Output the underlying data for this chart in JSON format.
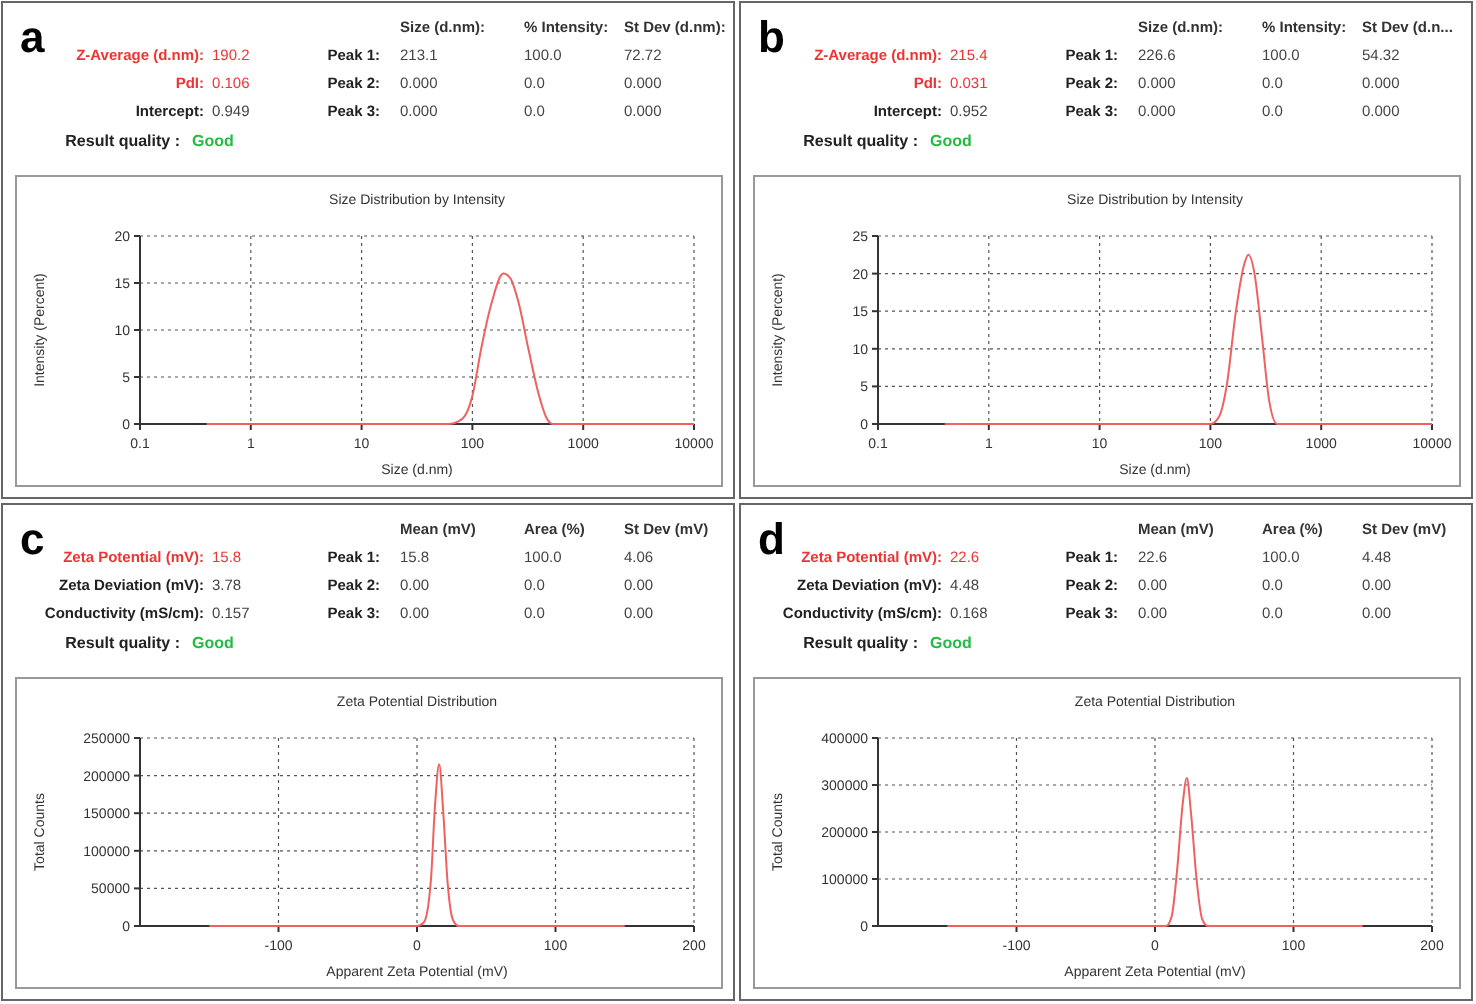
{
  "chart_data": [
    {
      "type": "other",
      "title": "a",
      "annotations": [
        "Size (d.nm):",
        "% Intensity:",
        "St Dev (d.nm):",
        "Z-Average (d.nm):",
        "190.2",
        "Peak 1:",
        "213.1",
        "100.0",
        "72.72",
        "PdI:",
        "0.106",
        "Peak 2:",
        "0.000",
        "0.0",
        "0.000",
        "Intercept:",
        "0.949",
        "Peak 3:",
        "0.000",
        "0.0",
        "0.000",
        "Result quality :",
        "Good"
      ]
    },
    {
      "type": "line",
      "title": "Size Distribution by Intensity",
      "xlabel": "Size (d.nm)",
      "ylabel": "Intensity (Percent)",
      "log": "x",
      "grid": true,
      "xlim": [
        0.1,
        10000
      ],
      "xticks": [
        0.1,
        1,
        10,
        100,
        1000,
        10000
      ],
      "ylim": [
        0,
        20
      ],
      "yticks": [
        0,
        5,
        10,
        15,
        20
      ],
      "x": [
        0.4,
        60,
        80,
        100,
        120,
        150,
        190,
        220,
        260,
        320,
        400,
        460,
        530,
        10000
      ],
      "series": [
        {
          "color": "#f06060",
          "values": [
            0,
            0,
            0.5,
            3,
            8,
            13,
            16,
            15.5,
            13,
            8,
            3,
            0.8,
            0,
            0
          ]
        }
      ]
    },
    {
      "type": "other",
      "title": "b",
      "annotations": [
        "Size (d.nm):",
        "% Intensity:",
        "St Dev (d.n...",
        "Z-Average (d.nm):",
        "215.4",
        "Peak 1:",
        "226.6",
        "100.0",
        "54.32",
        "PdI:",
        "0.031",
        "Peak 2:",
        "0.000",
        "0.0",
        "0.000",
        "Intercept:",
        "0.952",
        "Peak 3:",
        "0.000",
        "0.0",
        "0.000",
        "Result quality :",
        "Good"
      ]
    },
    {
      "type": "line",
      "title": "Size Distribution by Intensity",
      "xlabel": "Size (d.nm)",
      "ylabel": "Intensity (Percent)",
      "log": "x",
      "grid": true,
      "xlim": [
        0.1,
        10000
      ],
      "xticks": [
        0.1,
        1,
        10,
        100,
        1000,
        10000
      ],
      "ylim": [
        0,
        25
      ],
      "yticks": [
        0,
        5,
        10,
        15,
        20,
        25
      ],
      "x": [
        0.4,
        100,
        120,
        140,
        170,
        200,
        220,
        250,
        290,
        340,
        400,
        10000
      ],
      "series": [
        {
          "color": "#f06060",
          "values": [
            0,
            0,
            1,
            5,
            15,
            21,
            22.5,
            20,
            12,
            3,
            0,
            0
          ]
        }
      ]
    },
    {
      "type": "other",
      "title": "c",
      "annotations": [
        "Mean (mV)",
        "Area (%)",
        "St Dev (mV)",
        "Zeta Potential (mV):",
        "15.8",
        "Peak 1:",
        "15.8",
        "100.0",
        "4.06",
        "Zeta Deviation (mV):",
        "3.78",
        "Peak 2:",
        "0.00",
        "0.0",
        "0.00",
        "Conductivity (mS/cm):",
        "0.157",
        "Peak 3:",
        "0.00",
        "0.0",
        "0.00",
        "Result quality :",
        "Good"
      ]
    },
    {
      "type": "line",
      "title": "Zeta Potential Distribution",
      "xlabel": "Apparent Zeta Potential (mV)",
      "ylabel": "Total Counts",
      "grid": true,
      "xlim": [
        -200,
        200
      ],
      "xticks": [
        -100,
        0,
        100,
        200
      ],
      "ylim": [
        0,
        250000
      ],
      "yticks": [
        0,
        50000,
        100000,
        150000,
        200000,
        250000
      ],
      "x": [
        -150,
        0,
        5,
        10,
        13,
        16,
        19,
        22,
        26,
        30,
        150
      ],
      "series": [
        {
          "color": "#f06060",
          "values": [
            0,
            0,
            5000,
            60000,
            160000,
            215000,
            150000,
            60000,
            8000,
            0,
            0
          ]
        }
      ]
    },
    {
      "type": "other",
      "title": "d",
      "annotations": [
        "Mean (mV)",
        "Area (%)",
        "St Dev (mV)",
        "Zeta Potential (mV):",
        "22.6",
        "Peak 1:",
        "22.6",
        "100.0",
        "4.48",
        "Zeta Deviation (mV):",
        "4.48",
        "Peak 2:",
        "0.00",
        "0.0",
        "0.00",
        "Conductivity (mS/cm):",
        "0.168",
        "Peak 3:",
        "0.00",
        "0.0",
        "0.00",
        "Result quality :",
        "Good"
      ]
    },
    {
      "type": "line",
      "title": "Zeta Potential Distribution",
      "xlabel": "Apparent Zeta Potential (mV)",
      "ylabel": "Total Counts",
      "grid": true,
      "xlim": [
        -200,
        200
      ],
      "xticks": [
        -100,
        0,
        100,
        200
      ],
      "ylim": [
        0,
        400000
      ],
      "yticks": [
        0,
        100000,
        200000,
        300000,
        400000
      ],
      "x": [
        -150,
        8,
        12,
        16,
        20,
        23,
        26,
        30,
        34,
        38,
        150
      ],
      "series": [
        {
          "color": "#f06060",
          "values": [
            0,
            0,
            20000,
            120000,
            260000,
            315000,
            240000,
            100000,
            15000,
            0,
            0
          ]
        }
      ]
    }
  ]
}
